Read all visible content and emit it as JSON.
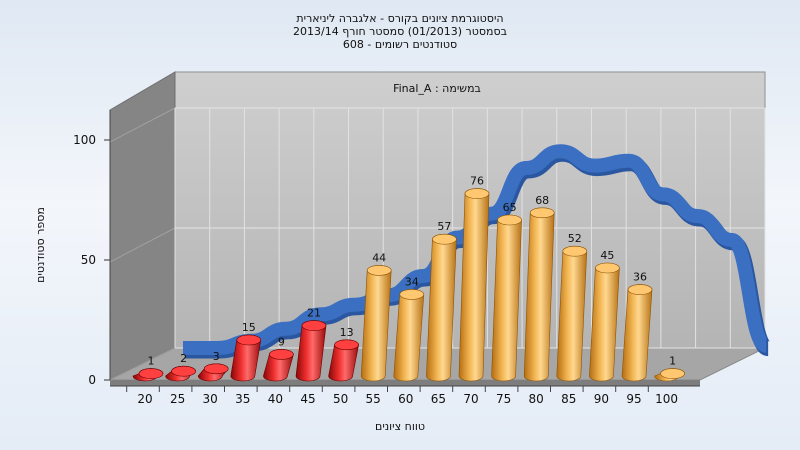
{
  "chart_data": {
    "type": "bar",
    "title_lines": [
      "היסטוגרמת ציונים בקורס - אלגברה ליניארית",
      "בסמסטר  (01/2013)  סמסטר חורף 2013/14",
      "סטודנטים רשומים - 608"
    ],
    "subtitle": "במשימה : Final_A",
    "xlabel": "טווח ציונים",
    "ylabel": "מספר סטודנטים",
    "categories": [
      "20",
      "25",
      "30",
      "35",
      "40",
      "45",
      "50",
      "55",
      "60",
      "65",
      "70",
      "75",
      "80",
      "85",
      "90",
      "95",
      "100"
    ],
    "values": [
      1,
      2,
      3,
      15,
      9,
      21,
      13,
      44,
      34,
      57,
      76,
      65,
      68,
      52,
      45,
      36,
      1
    ],
    "value_labels": [
      "1",
      "2",
      "3",
      "15",
      "9",
      "21",
      "13",
      "44",
      "34",
      "57",
      "76",
      "65",
      "68",
      "52",
      "45",
      "36",
      "1"
    ],
    "ylim": [
      0,
      100
    ],
    "yticks": [
      "0",
      "50",
      "100"
    ],
    "curve": [
      0,
      0,
      3,
      8,
      14,
      18,
      22,
      30,
      46,
      56,
      75,
      82,
      76,
      78,
      64,
      55,
      45,
      1
    ],
    "colors": {
      "fail_bar": "#d81818",
      "pass_bar": "#e8a83a",
      "curve": "#3a6fc2",
      "wall": "#bdbdbd",
      "side_wall": "#868686",
      "floor": "#a9a9a9"
    },
    "fail_threshold": "55",
    "grid": true
  }
}
